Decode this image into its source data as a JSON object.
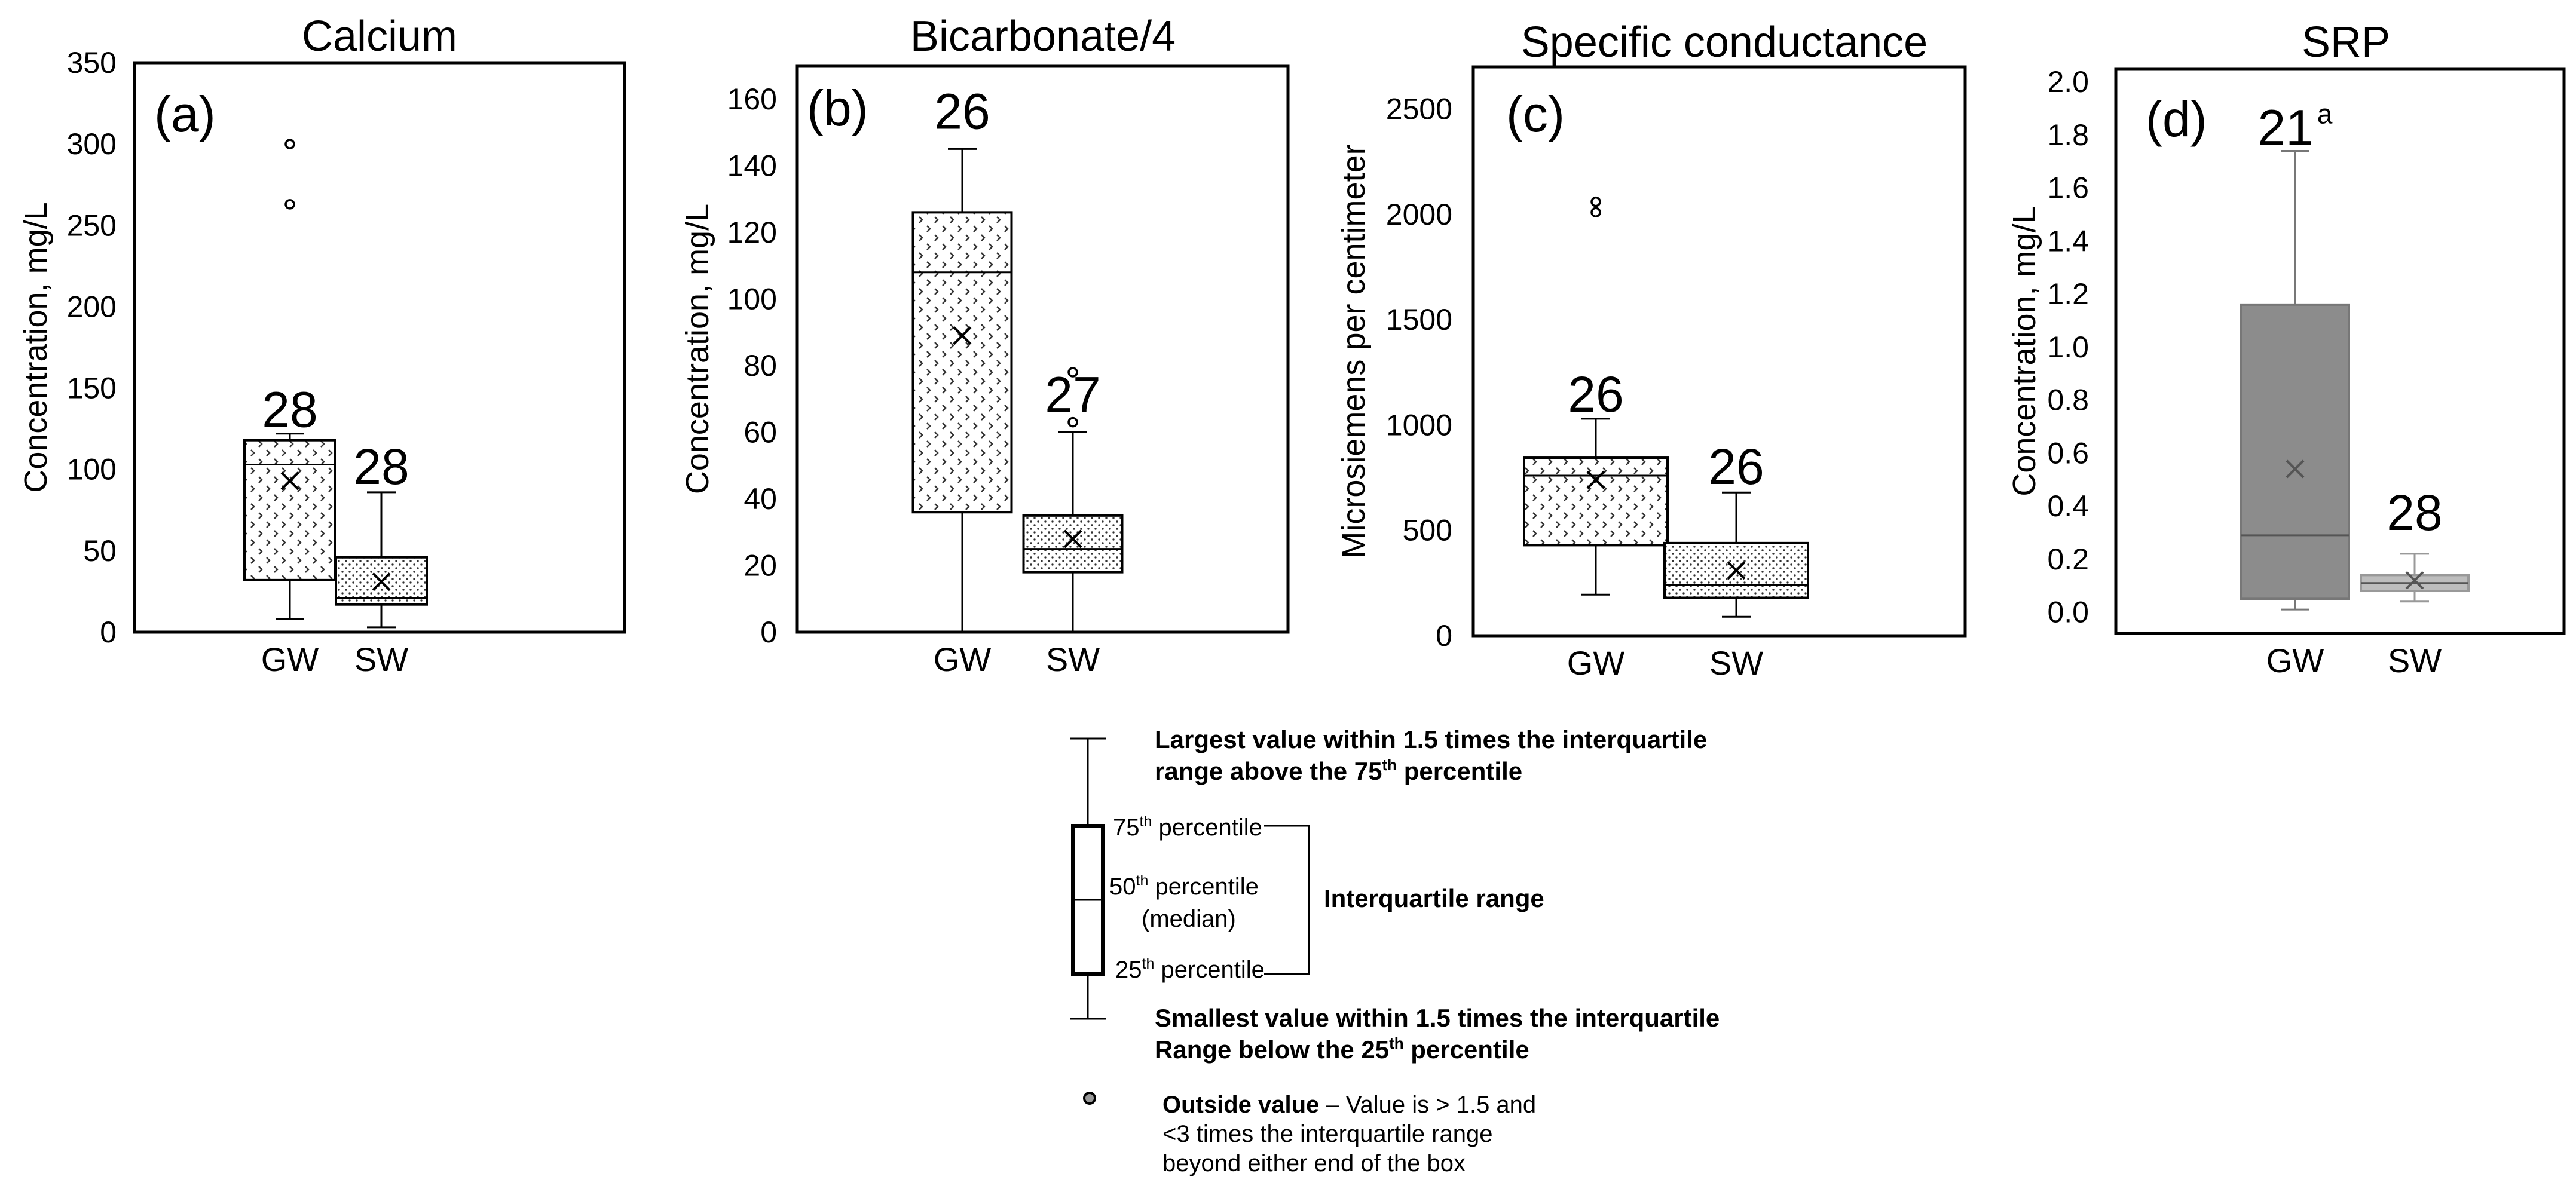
{
  "chart_data": [
    {
      "type": "box",
      "title": "Calcium",
      "panel_label": "(a)",
      "ylabel": "Concentration, mg/L",
      "ylim": [
        0,
        350
      ],
      "y_ticks": [
        0,
        50,
        100,
        150,
        200,
        250,
        300,
        350
      ],
      "categories": [
        "GW",
        "SW"
      ],
      "style": "crosshatch",
      "boxes": [
        {
          "category": "GW",
          "n_label": "28",
          "whisker_low": 8,
          "q1": 32,
          "median": 103,
          "q3": 118,
          "whisker_high": 122,
          "mean": 93,
          "outliers": [
            263,
            300
          ]
        },
        {
          "category": "SW",
          "n_label": "28",
          "whisker_low": 3,
          "q1": 17,
          "median": 21,
          "q3": 46,
          "whisker_high": 86,
          "mean": 31,
          "outliers": []
        }
      ]
    },
    {
      "type": "box",
      "title": "Bicarbonate/4",
      "panel_label": "(b)",
      "ylabel": "Concentration, mg/L",
      "ylim": [
        0,
        170
      ],
      "y_ticks": [
        0,
        20,
        40,
        60,
        80,
        100,
        120,
        140,
        160
      ],
      "categories": [
        "GW",
        "SW"
      ],
      "style": "crosshatch",
      "boxes": [
        {
          "category": "GW",
          "n_label": "26",
          "whisker_low": 0,
          "q1": 36,
          "median": 108,
          "q3": 126,
          "whisker_high": 145,
          "mean": 89,
          "outliers": []
        },
        {
          "category": "SW",
          "n_label": "27",
          "whisker_low": 0,
          "q1": 18,
          "median": 25,
          "q3": 35,
          "whisker_high": 60,
          "mean": 28,
          "outliers": [
            63,
            78
          ]
        }
      ]
    },
    {
      "type": "box",
      "title": "Specific conductance",
      "panel_label": "(c)",
      "ylabel": "Microsiemens per centimeter",
      "ylim": [
        0,
        2700
      ],
      "y_ticks": [
        0,
        500,
        1000,
        1500,
        2000,
        2500
      ],
      "categories": [
        "GW",
        "SW"
      ],
      "style": "crosshatch",
      "boxes": [
        {
          "category": "GW",
          "n_label": "26",
          "whisker_low": 195,
          "q1": 430,
          "median": 760,
          "q3": 845,
          "whisker_high": 1030,
          "mean": 740,
          "outliers": [
            2010,
            2060
          ]
        },
        {
          "category": "SW",
          "n_label": "26",
          "whisker_low": 90,
          "q1": 180,
          "median": 240,
          "q3": 440,
          "whisker_high": 680,
          "mean": 310,
          "outliers": []
        }
      ]
    },
    {
      "type": "box",
      "title": "SRP",
      "panel_label": "(d)",
      "ylabel": "Concentration, mg/L",
      "ylim": [
        -0.08,
        2.05
      ],
      "y_ticks": [
        0.0,
        0.2,
        0.4,
        0.6,
        0.8,
        1.0,
        1.2,
        1.4,
        1.6,
        1.8,
        2.0
      ],
      "y_tick_labels": [
        "0.0",
        "0.2",
        "0.4",
        "0.6",
        "0.8",
        "1.0",
        "1.2",
        "1.4",
        "1.6",
        "1.8",
        "2.0"
      ],
      "categories": [
        "GW",
        "SW"
      ],
      "style": "gray",
      "boxes": [
        {
          "category": "GW",
          "n_label": "21",
          "n_superscript": "a",
          "whisker_low": 0.01,
          "q1": 0.05,
          "median": 0.29,
          "q3": 1.16,
          "whisker_high": 1.74,
          "mean": 0.54,
          "outliers": []
        },
        {
          "category": "SW",
          "n_label": "28",
          "whisker_low": 0.04,
          "q1": 0.08,
          "median": 0.11,
          "q3": 0.14,
          "whisker_high": 0.22,
          "mean": 0.12,
          "outliers": []
        }
      ]
    }
  ],
  "legend": {
    "whisker_high_line1": "Largest value within 1.5 times the interquartile",
    "whisker_high_line2": "range above the 75",
    "whisker_high_sup": "th",
    "whisker_high_end": " percentile",
    "p75": "75",
    "p75_sup": "th",
    "p75_end": " percentile",
    "p50": "50",
    "p50_sup": "th",
    "p50_end": " percentile",
    "p50_median": "(median)",
    "p25": "25",
    "p25_sup": "th",
    "p25_end": " percentile",
    "iqr": "Interquartile range",
    "whisker_low_line1": "Smallest value within 1.5 times the interquartile",
    "whisker_low_line2": "Range below the 25",
    "whisker_low_sup": "th",
    "whisker_low_end": " percentile",
    "outside_bold": "Outside value",
    "outside_text1": " – Value is > 1.5 and",
    "outside_text2": "<3 times the interquartile range",
    "outside_text3": "beyond either end of the box"
  }
}
